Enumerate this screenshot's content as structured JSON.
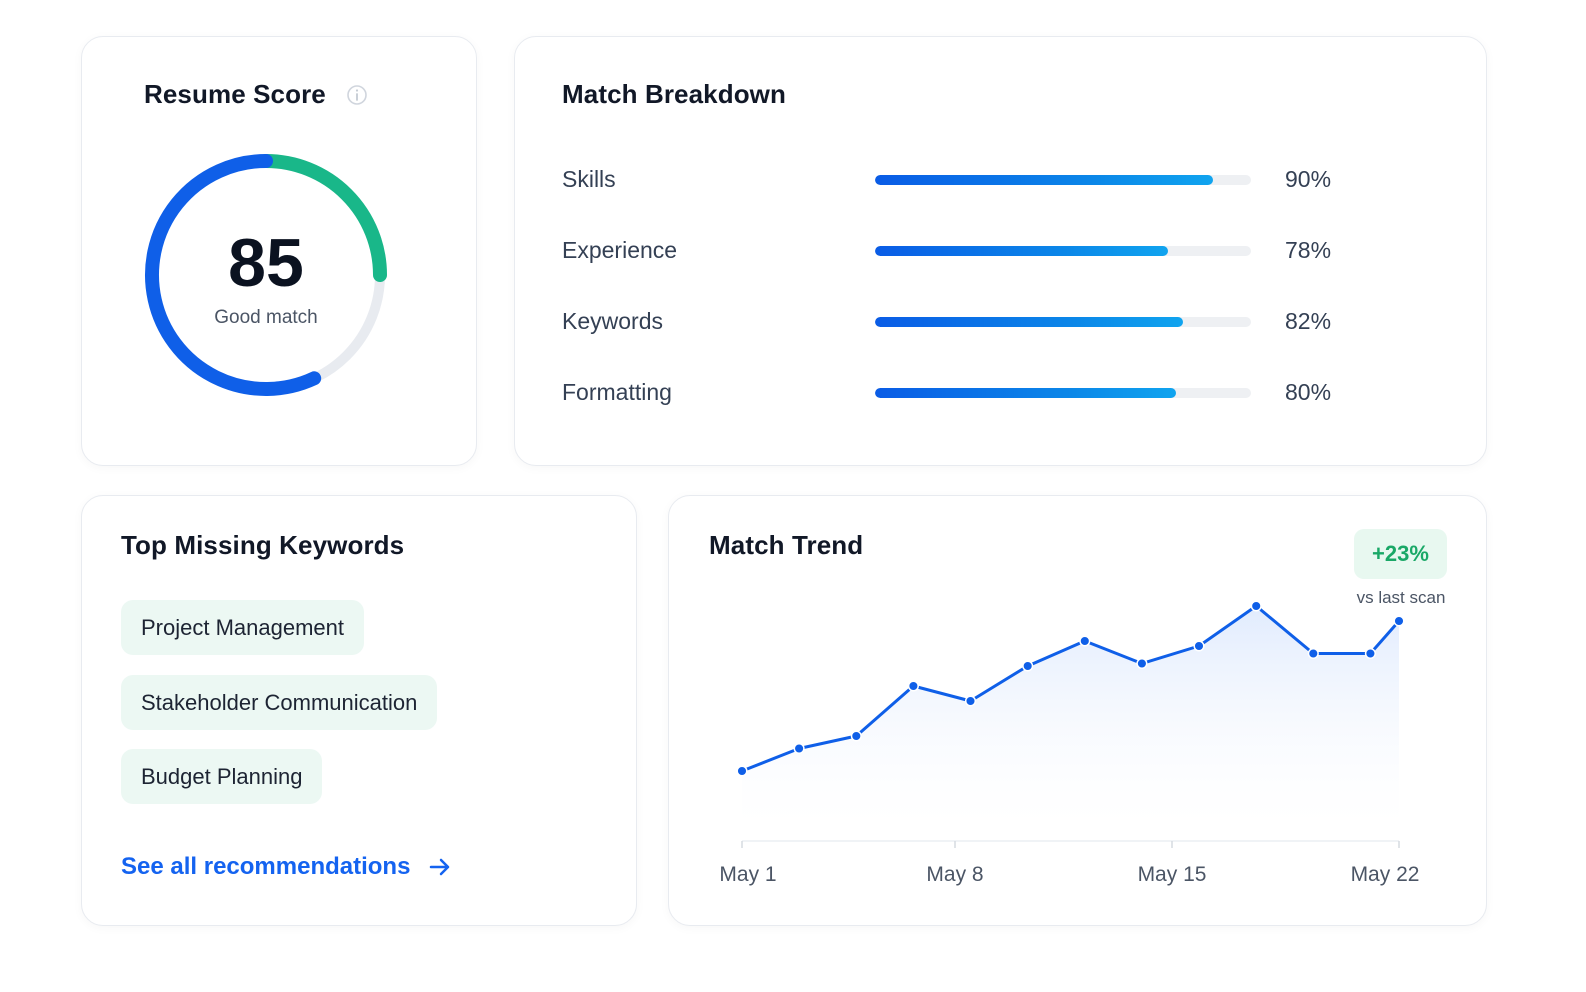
{
  "resume_score": {
    "title": "Resume Score",
    "value": "85",
    "label": "Good match",
    "score_fraction": 0.85,
    "info_icon": "info-icon",
    "colors": {
      "primary": "#0f5fe8",
      "accent": "#19b789",
      "track": "#e8ebf0"
    }
  },
  "breakdown": {
    "title": "Match Breakdown",
    "metrics": [
      {
        "label": "Skills",
        "value": "90%",
        "percent": 90
      },
      {
        "label": "Experience",
        "value": "78%",
        "percent": 78
      },
      {
        "label": "Keywords",
        "value": "82%",
        "percent": 82
      },
      {
        "label": "Formatting",
        "value": "80%",
        "percent": 80
      }
    ]
  },
  "keywords": {
    "title": "Top Missing Keywords",
    "items": [
      "Project Management",
      "Stakeholder Communication",
      "Budget Planning"
    ],
    "link_label": "See all recommendations",
    "link_icon": "arrow-right-icon"
  },
  "trend": {
    "title": "Match Trend",
    "delta": "+23%",
    "delta_caption": "vs last scan",
    "colors": {
      "line": "#0f5fe8",
      "fill": "#eaf2ff",
      "badge_text": "#1aa867"
    }
  },
  "chart_data": {
    "type": "line",
    "x_ticks": [
      "May 1",
      "May 8",
      "May 15",
      "May 22"
    ],
    "x_days": [
      1,
      3,
      5,
      7,
      9,
      11,
      13,
      15,
      17,
      19,
      21,
      23,
      24
    ],
    "values": [
      22,
      31,
      36,
      56,
      50,
      64,
      74,
      65,
      72,
      88,
      69,
      69,
      82
    ],
    "ylim": [
      0,
      100
    ],
    "grid": false,
    "title": "Match Trend"
  }
}
